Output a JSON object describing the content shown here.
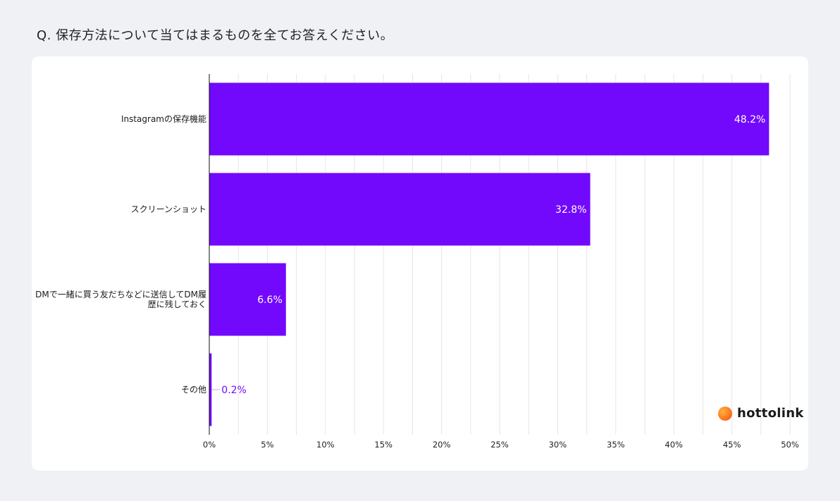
{
  "question": "Q. 保存方法について当てはまるものを全てお答えください。",
  "logo": {
    "text": "hottolink",
    "icon": "hottolink-logo-circle-icon"
  },
  "colors": {
    "bar": "#7209fd",
    "grid": "#e6e6e6",
    "label_inside": "#ffffff",
    "label_outside": "#7209fd",
    "background": "#f0f1f5"
  },
  "chart_data": {
    "type": "bar",
    "orientation": "horizontal",
    "categories": [
      [
        "Instagramの保存機能"
      ],
      [
        "スクリーンショット"
      ],
      [
        "DMで一緒に買う友だちなどに送信してDM履",
        "歴に残しておく"
      ],
      [
        "その他"
      ]
    ],
    "values": [
      48.2,
      32.8,
      6.6,
      0.2
    ],
    "value_labels": [
      "48.2%",
      "32.8%",
      "6.6%",
      "0.2%"
    ],
    "xlim": [
      0,
      50
    ],
    "x_ticks": [
      "0%",
      "5%",
      "10%",
      "15%",
      "20%",
      "25%",
      "30%",
      "35%",
      "40%",
      "45%",
      "50%"
    ],
    "grid": true,
    "title": "Q. 保存方法について当てはまるものを全てお答えください。"
  }
}
